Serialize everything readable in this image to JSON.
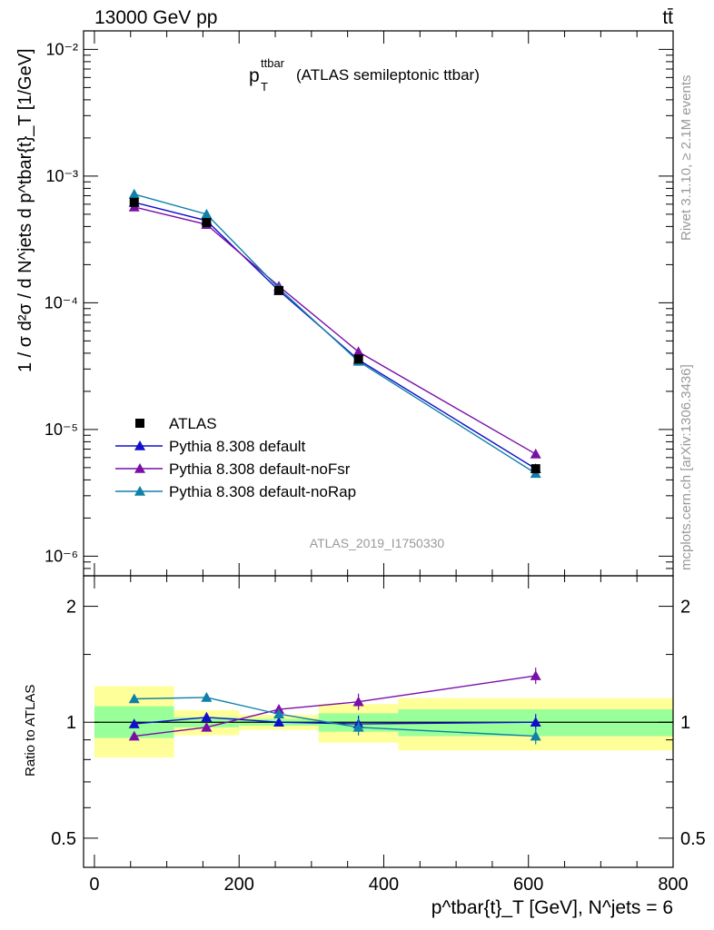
{
  "header": {
    "left": "13000 GeV pp",
    "right": "tt̄"
  },
  "side_texts": {
    "rivet": "Rivet 3.1.10, ≥ 2.1M events",
    "mcplots": "mcplots.cern.ch [arXiv:1306.3436]"
  },
  "plot_title": {
    "main": "p",
    "sup": "ttbar",
    "sub": "T",
    "rest": "(ATLAS semileptonic ttbar)"
  },
  "analysis_label": "ATLAS_2019_I1750330",
  "colors": {
    "data": "#000000",
    "default": "#1010cc",
    "noFsr": "#7a0fa8",
    "noRap": "#0f80a8",
    "band_inner": "#99ff99",
    "band_outer": "#ffff99"
  },
  "chart_data": [
    {
      "type": "line",
      "name": "main",
      "yscale": "log",
      "ylim": [
        7e-07,
        0.014
      ],
      "xlim": [
        -15,
        800
      ],
      "ylabel": "1 / σ d²σ / d N^jets d p^tbar{t}_T [1/GeV]",
      "ytick_labels": [
        "10⁻⁶",
        "10⁻⁵",
        "10⁻⁴",
        "10⁻³",
        "10⁻²"
      ],
      "ytick_values": [
        1e-06,
        1e-05,
        0.0001,
        0.001,
        0.01
      ],
      "bins": [
        [
          0,
          110
        ],
        [
          110,
          200
        ],
        [
          200,
          310
        ],
        [
          310,
          420
        ],
        [
          420,
          800
        ]
      ],
      "x": [
        55,
        155,
        255,
        365,
        610
      ],
      "series": [
        {
          "name": "ATLAS",
          "key": "data",
          "marker": "square",
          "values": [
            0.00062,
            0.00043,
            0.000125,
            3.6e-05,
            4.9e-06
          ]
        },
        {
          "name": "Pythia 8.308 default",
          "key": "default",
          "marker": "triangle",
          "values": [
            0.00062,
            0.000445,
            0.000125,
            3.55e-05,
            4.9e-06
          ]
        },
        {
          "name": "Pythia 8.308 default-noFsr",
          "key": "noFsr",
          "marker": "triangle",
          "values": [
            0.00057,
            0.000415,
            0.000135,
            4.1e-05,
            6.4e-06
          ]
        },
        {
          "name": "Pythia 8.308 default-noRap",
          "key": "noRap",
          "marker": "triangle",
          "values": [
            0.00072,
            0.0005,
            0.00013,
            3.45e-05,
            4.5e-06
          ]
        }
      ],
      "legend_position": "bottom-left"
    },
    {
      "type": "line",
      "name": "ratio",
      "yscale": "log",
      "ylim": [
        0.42,
        2.4
      ],
      "xlim": [
        -15,
        800
      ],
      "ylabel": "Ratio to ATLAS",
      "xlabel": "p^tbar{t}_T [GeV], N^jets = 6",
      "ytick_labels": [
        "0.5",
        "1",
        "2"
      ],
      "ytick_values": [
        0.5,
        1,
        2
      ],
      "xtick_labels": [
        "0",
        "200",
        "400",
        "600",
        "800"
      ],
      "xtick_values": [
        0,
        200,
        400,
        600,
        800
      ],
      "bands": [
        {
          "bin": [
            0,
            110
          ],
          "inner": [
            0.91,
            1.1
          ],
          "outer": [
            0.81,
            1.24
          ]
        },
        {
          "bin": [
            110,
            200
          ],
          "inner": [
            0.97,
            1.03
          ],
          "outer": [
            0.925,
            1.075
          ]
        },
        {
          "bin": [
            200,
            310
          ],
          "inner": [
            0.98,
            1.02
          ],
          "outer": [
            0.955,
            1.045
          ]
        },
        {
          "bin": [
            310,
            420
          ],
          "inner": [
            0.945,
            1.055
          ],
          "outer": [
            0.885,
            1.115
          ]
        },
        {
          "bin": [
            420,
            800
          ],
          "inner": [
            0.92,
            1.08
          ],
          "outer": [
            0.845,
            1.155
          ]
        }
      ],
      "x": [
        55,
        155,
        255,
        365,
        610
      ],
      "series": [
        {
          "name": "Pythia 8.308 default",
          "key": "default",
          "values": [
            0.99,
            1.03,
            1.0,
            0.99,
            1.0
          ]
        },
        {
          "name": "Pythia 8.308 default-noFsr",
          "key": "noFsr",
          "values": [
            0.92,
            0.97,
            1.08,
            1.13,
            1.32
          ]
        },
        {
          "name": "Pythia 8.308 default-noRap",
          "key": "noRap",
          "values": [
            1.15,
            1.16,
            1.05,
            0.97,
            0.92
          ]
        }
      ]
    }
  ]
}
